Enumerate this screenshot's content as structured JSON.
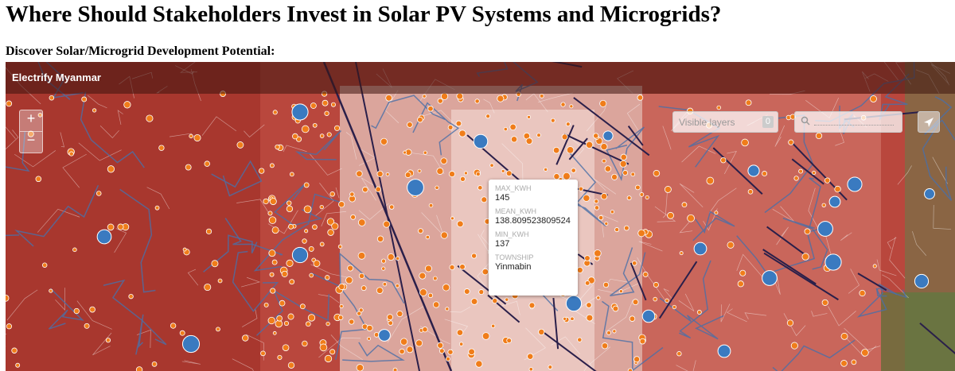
{
  "header": {
    "title": "Where Should Stakeholders Invest in Solar PV Systems and Microgrids?",
    "subtitle": "Discover Solar/Microgrid Development Potential:"
  },
  "map": {
    "title": "Electrify Myanmar",
    "zoom_in": "+",
    "zoom_out": "−",
    "layers_label": "Visible layers",
    "layers_count": 0
  },
  "popup": {
    "fields": [
      {
        "label": "MAX_KWH",
        "value": 145
      },
      {
        "label": "MEAN_KWH",
        "value": 138.809523809524
      },
      {
        "label": "MIN_KWH",
        "value": 137
      },
      {
        "label": "TOWNSHIP",
        "value": "Yinmabin"
      }
    ]
  }
}
